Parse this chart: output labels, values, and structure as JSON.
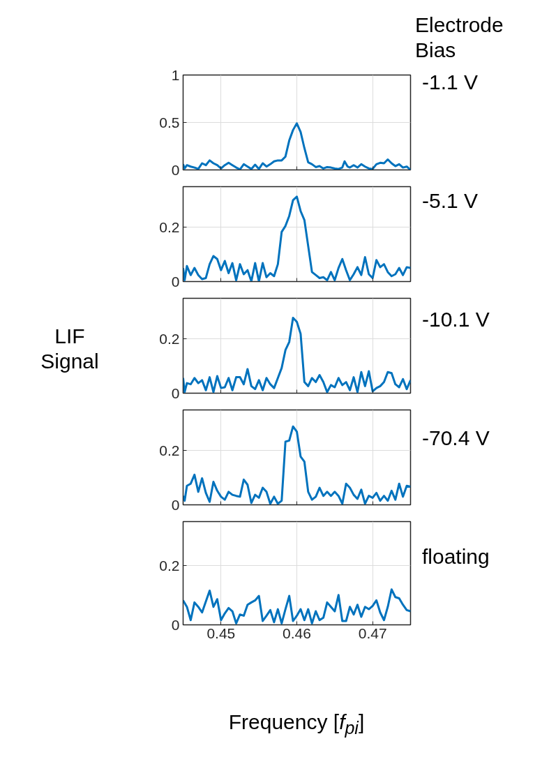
{
  "chart_data": [
    {
      "type": "line",
      "annotations": [
        "Electrode Bias"
      ],
      "xlim": [
        0.445,
        0.475
      ],
      "ylim": [
        0,
        1
      ],
      "xticks": [
        0.45,
        0.46,
        0.47
      ],
      "yticks": [
        0,
        0.5,
        1
      ],
      "grid": true,
      "tick_labels": "y",
      "series": [
        {
          "name": "-1.1 V",
          "color": "#0072bd",
          "x": [
            0.445,
            0.4452,
            0.4455,
            0.446,
            0.4465,
            0.447,
            0.4475,
            0.448,
            0.4485,
            0.449,
            0.4495,
            0.45,
            0.4505,
            0.451,
            0.4515,
            0.452,
            0.4525,
            0.453,
            0.4535,
            0.454,
            0.4545,
            0.455,
            0.4555,
            0.456,
            0.4565,
            0.457,
            0.4575,
            0.458,
            0.4585,
            0.459,
            0.4595,
            0.46,
            0.4605,
            0.461,
            0.4615,
            0.462,
            0.4625,
            0.463,
            0.4635,
            0.464,
            0.4645,
            0.465,
            0.4655,
            0.466,
            0.4663,
            0.4667,
            0.467,
            0.4675,
            0.468,
            0.4685,
            0.469,
            0.4695,
            0.47,
            0.4705,
            0.471,
            0.4715,
            0.472,
            0.4725,
            0.473,
            0.4735,
            0.474,
            0.4745,
            0.475
          ],
          "values": [
            0.06,
            0.015,
            0.05,
            0.035,
            0.025,
            0.01,
            0.07,
            0.05,
            0.1,
            0.07,
            0.05,
            0.015,
            0.05,
            0.075,
            0.05,
            0.025,
            0.005,
            0.06,
            0.035,
            0.01,
            0.055,
            0.01,
            0.07,
            0.035,
            0.06,
            0.09,
            0.1,
            0.1,
            0.14,
            0.31,
            0.42,
            0.49,
            0.4,
            0.23,
            0.08,
            0.06,
            0.03,
            0.04,
            0.015,
            0.03,
            0.025,
            0.015,
            0.01,
            0.025,
            0.09,
            0.035,
            0.025,
            0.05,
            0.025,
            0.06,
            0.035,
            0.015,
            0.01,
            0.06,
            0.075,
            0.07,
            0.11,
            0.07,
            0.04,
            0.06,
            0.025,
            0.035,
            0.0
          ]
        }
      ]
    },
    {
      "type": "line",
      "xlim": [
        0.445,
        0.475
      ],
      "ylim": [
        0,
        0.35
      ],
      "xticks": [
        0.45,
        0.46,
        0.47
      ],
      "yticks": [
        0,
        0.2
      ],
      "grid": true,
      "tick_labels": "y",
      "series": [
        {
          "name": "-5.1 V",
          "color": "#0072bd",
          "x": [
            0.445,
            0.4452,
            0.4455,
            0.446,
            0.4465,
            0.447,
            0.4475,
            0.448,
            0.4485,
            0.449,
            0.4495,
            0.45,
            0.4505,
            0.451,
            0.4515,
            0.452,
            0.4525,
            0.453,
            0.4535,
            0.454,
            0.4545,
            0.455,
            0.4555,
            0.456,
            0.4565,
            0.457,
            0.4575,
            0.458,
            0.4585,
            0.459,
            0.4595,
            0.46,
            0.4605,
            0.461,
            0.4615,
            0.462,
            0.4625,
            0.463,
            0.4635,
            0.464,
            0.4645,
            0.465,
            0.4655,
            0.466,
            0.4665,
            0.467,
            0.4675,
            0.468,
            0.4685,
            0.469,
            0.4695,
            0.47,
            0.4705,
            0.471,
            0.4715,
            0.472,
            0.4725,
            0.473,
            0.4735,
            0.474,
            0.4745,
            0.475
          ],
          "values": [
            0.05,
            0.005,
            0.057,
            0.024,
            0.05,
            0.024,
            0.009,
            0.013,
            0.064,
            0.094,
            0.083,
            0.042,
            0.076,
            0.031,
            0.068,
            0.005,
            0.064,
            0.027,
            0.042,
            0.001,
            0.068,
            0.001,
            0.068,
            0.016,
            0.031,
            0.02,
            0.064,
            0.183,
            0.205,
            0.242,
            0.3,
            0.313,
            0.26,
            0.227,
            0.131,
            0.035,
            0.024,
            0.013,
            0.016,
            0.005,
            0.035,
            0.005,
            0.05,
            0.083,
            0.042,
            0.005,
            0.027,
            0.053,
            0.024,
            0.09,
            0.027,
            0.013,
            0.079,
            0.053,
            0.064,
            0.035,
            0.02,
            0.027,
            0.05,
            0.024,
            0.053,
            0.05
          ]
        }
      ]
    },
    {
      "type": "line",
      "ylabel": "LIF Signal",
      "xlim": [
        0.445,
        0.475
      ],
      "ylim": [
        0,
        0.35
      ],
      "xticks": [
        0.45,
        0.46,
        0.47
      ],
      "yticks": [
        0,
        0.2
      ],
      "grid": true,
      "tick_labels": "y",
      "series": [
        {
          "name": "-10.1 V",
          "color": "#0072bd",
          "x": [
            0.445,
            0.4452,
            0.4455,
            0.446,
            0.4465,
            0.447,
            0.4475,
            0.448,
            0.4485,
            0.449,
            0.4495,
            0.45,
            0.4505,
            0.451,
            0.4515,
            0.452,
            0.4525,
            0.453,
            0.4535,
            0.454,
            0.4545,
            0.455,
            0.4555,
            0.456,
            0.4565,
            0.457,
            0.4575,
            0.458,
            0.4585,
            0.459,
            0.4595,
            0.46,
            0.4605,
            0.461,
            0.4615,
            0.462,
            0.4625,
            0.463,
            0.4635,
            0.464,
            0.4645,
            0.465,
            0.4655,
            0.466,
            0.4665,
            0.467,
            0.4675,
            0.468,
            0.4685,
            0.469,
            0.4695,
            0.47,
            0.4705,
            0.471,
            0.4715,
            0.472,
            0.4725,
            0.473,
            0.4735,
            0.474,
            0.4745,
            0.475
          ],
          "values": [
            0.056,
            0.004,
            0.037,
            0.033,
            0.056,
            0.037,
            0.048,
            0.011,
            0.059,
            0.004,
            0.063,
            0.019,
            0.022,
            0.056,
            0.011,
            0.059,
            0.059,
            0.033,
            0.089,
            0.026,
            0.015,
            0.048,
            0.011,
            0.056,
            0.033,
            0.019,
            0.056,
            0.093,
            0.159,
            0.189,
            0.278,
            0.263,
            0.219,
            0.041,
            0.026,
            0.056,
            0.041,
            0.067,
            0.041,
            0.004,
            0.03,
            0.022,
            0.056,
            0.03,
            0.041,
            0.011,
            0.059,
            0.004,
            0.078,
            0.026,
            0.081,
            0.007,
            0.019,
            0.026,
            0.041,
            0.078,
            0.074,
            0.033,
            0.022,
            0.052,
            0.015,
            0.048
          ]
        }
      ]
    },
    {
      "type": "line",
      "xlim": [
        0.445,
        0.475
      ],
      "ylim": [
        0,
        0.35
      ],
      "xticks": [
        0.45,
        0.46,
        0.47
      ],
      "yticks": [
        0,
        0.2
      ],
      "grid": true,
      "tick_labels": "y",
      "series": [
        {
          "name": "-70.4 V",
          "color": "#0072bd",
          "x": [
            0.445,
            0.4452,
            0.4455,
            0.446,
            0.4465,
            0.447,
            0.4475,
            0.448,
            0.4485,
            0.449,
            0.4495,
            0.45,
            0.4505,
            0.451,
            0.4515,
            0.452,
            0.4525,
            0.453,
            0.4535,
            0.454,
            0.4545,
            0.455,
            0.4555,
            0.456,
            0.4565,
            0.457,
            0.4575,
            0.458,
            0.4585,
            0.459,
            0.4595,
            0.46,
            0.4605,
            0.461,
            0.4615,
            0.462,
            0.4625,
            0.463,
            0.4635,
            0.464,
            0.4645,
            0.465,
            0.4655,
            0.466,
            0.4665,
            0.467,
            0.4675,
            0.468,
            0.4685,
            0.469,
            0.4695,
            0.47,
            0.4705,
            0.471,
            0.4715,
            0.472,
            0.4725,
            0.473,
            0.4735,
            0.474,
            0.4745,
            0.475
          ],
          "values": [
            0.033,
            0.015,
            0.07,
            0.078,
            0.111,
            0.048,
            0.098,
            0.044,
            0.011,
            0.085,
            0.052,
            0.03,
            0.019,
            0.048,
            0.037,
            0.033,
            0.03,
            0.093,
            0.074,
            0.007,
            0.037,
            0.026,
            0.063,
            0.048,
            0.004,
            0.03,
            0.004,
            0.015,
            0.233,
            0.237,
            0.289,
            0.27,
            0.178,
            0.159,
            0.048,
            0.019,
            0.03,
            0.063,
            0.033,
            0.048,
            0.033,
            0.048,
            0.033,
            0.004,
            0.078,
            0.063,
            0.037,
            0.022,
            0.056,
            0.004,
            0.033,
            0.026,
            0.044,
            0.015,
            0.033,
            0.015,
            0.052,
            0.019,
            0.078,
            0.03,
            0.07,
            0.067
          ]
        }
      ]
    },
    {
      "type": "line",
      "xlabel": "Frequency [f$_{pi}$]",
      "xlim": [
        0.445,
        0.475
      ],
      "ylim": [
        0,
        0.35
      ],
      "xticks": [
        0.45,
        0.46,
        0.47
      ],
      "yticks": [
        0,
        0.2
      ],
      "grid": true,
      "series": [
        {
          "name": "floating",
          "color": "#0072bd",
          "x": [
            0.445,
            0.4455,
            0.446,
            0.4465,
            0.447,
            0.4475,
            0.448,
            0.4485,
            0.449,
            0.4495,
            0.45,
            0.4505,
            0.451,
            0.4515,
            0.452,
            0.4525,
            0.453,
            0.4535,
            0.454,
            0.4545,
            0.455,
            0.4555,
            0.456,
            0.4565,
            0.457,
            0.4575,
            0.458,
            0.4585,
            0.459,
            0.4595,
            0.46,
            0.4605,
            0.461,
            0.4615,
            0.462,
            0.4625,
            0.463,
            0.4635,
            0.464,
            0.4645,
            0.465,
            0.4655,
            0.466,
            0.4665,
            0.467,
            0.4675,
            0.468,
            0.4685,
            0.469,
            0.4695,
            0.47,
            0.4705,
            0.471,
            0.4715,
            0.472,
            0.4725,
            0.473,
            0.4735,
            0.474,
            0.4745,
            0.475
          ],
          "values": [
            0.083,
            0.061,
            0.016,
            0.076,
            0.061,
            0.042,
            0.079,
            0.116,
            0.061,
            0.087,
            0.016,
            0.039,
            0.057,
            0.046,
            0.005,
            0.035,
            0.031,
            0.068,
            0.076,
            0.083,
            0.098,
            0.013,
            0.031,
            0.05,
            0.009,
            0.053,
            0.005,
            0.053,
            0.098,
            0.013,
            0.031,
            0.053,
            0.016,
            0.053,
            0.005,
            0.046,
            0.016,
            0.024,
            0.076,
            0.061,
            0.046,
            0.101,
            0.013,
            0.013,
            0.061,
            0.035,
            0.068,
            0.027,
            0.061,
            0.053,
            0.064,
            0.083,
            0.042,
            0.016,
            0.061,
            0.12,
            0.094,
            0.09,
            0.068,
            0.05,
            0.046
          ]
        }
      ]
    }
  ]
}
